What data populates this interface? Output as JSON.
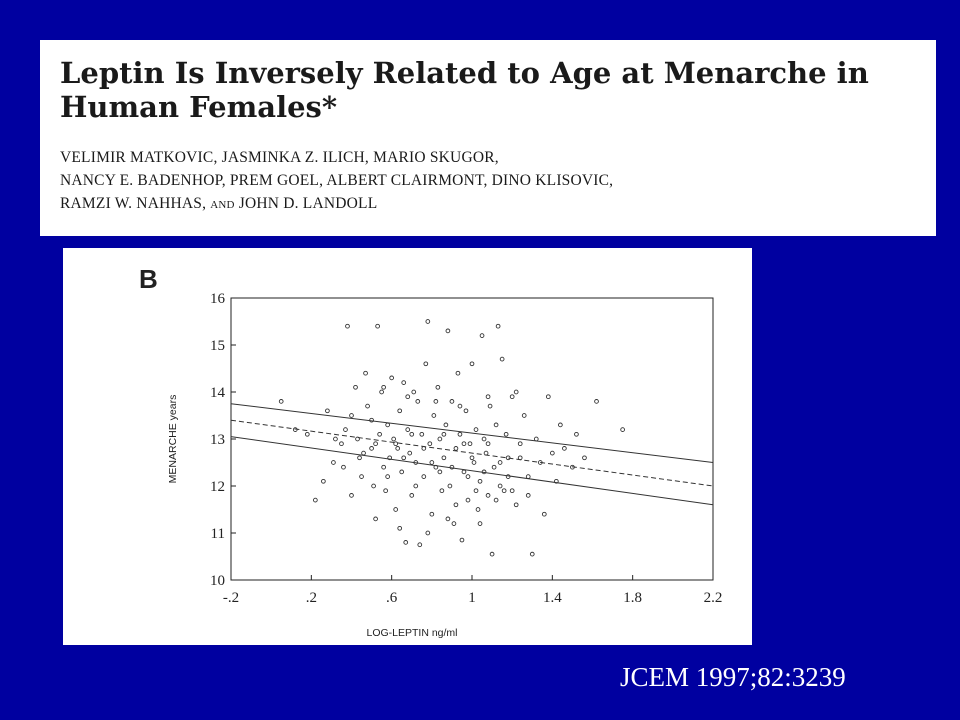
{
  "paper": {
    "title": "Leptin Is Inversely Related to Age at Menarche in Human Females*",
    "authors_line1": "VELIMIR MATKOVIC, JASMINKA Z. ILICH, MARIO SKUGOR,",
    "authors_line2": "NANCY E. BADENHOP, PREM GOEL, ALBERT CLAIRMONT, DINO KLISOVIC,",
    "authors_line3a": "RAMZI W. NAHHAS,",
    "authors_line3b": "AND",
    "authors_line3c": "JOHN D. LANDOLL"
  },
  "citation": "JCEM 1997;82:3239",
  "chart_data": {
    "type": "scatter",
    "panel_label": "B",
    "xlabel": "LOG-LEPTIN ng/ml",
    "ylabel": "MENARCHE years",
    "xlim": [
      -0.2,
      2.2
    ],
    "ylim": [
      10,
      16
    ],
    "x_ticks": [
      "-.2",
      ".2",
      ".6",
      "1",
      "1.4",
      "1.8",
      "2.2"
    ],
    "y_ticks": [
      "10",
      "11",
      "12",
      "13",
      "14",
      "15",
      "16"
    ],
    "grid": false,
    "regression_line": {
      "x": [
        -0.2,
        2.2
      ],
      "y": [
        13.4,
        12.0
      ]
    },
    "confidence_band": {
      "upper_y": [
        13.75,
        12.5
      ],
      "lower_y": [
        13.05,
        11.6
      ]
    },
    "points": [
      [
        0.05,
        13.8
      ],
      [
        0.12,
        13.2
      ],
      [
        0.18,
        13.1
      ],
      [
        0.22,
        11.7
      ],
      [
        0.26,
        12.1
      ],
      [
        0.28,
        13.6
      ],
      [
        0.31,
        12.5
      ],
      [
        0.35,
        12.9
      ],
      [
        0.37,
        13.2
      ],
      [
        0.38,
        15.4
      ],
      [
        0.4,
        13.5
      ],
      [
        0.42,
        14.1
      ],
      [
        0.43,
        13.0
      ],
      [
        0.45,
        12.2
      ],
      [
        0.46,
        12.7
      ],
      [
        0.48,
        13.7
      ],
      [
        0.5,
        13.4
      ],
      [
        0.51,
        12.0
      ],
      [
        0.52,
        12.9
      ],
      [
        0.53,
        15.4
      ],
      [
        0.54,
        13.1
      ],
      [
        0.55,
        14.0
      ],
      [
        0.56,
        12.4
      ],
      [
        0.57,
        11.9
      ],
      [
        0.58,
        13.3
      ],
      [
        0.59,
        12.6
      ],
      [
        0.6,
        14.3
      ],
      [
        0.61,
        13.0
      ],
      [
        0.62,
        11.5
      ],
      [
        0.63,
        12.8
      ],
      [
        0.64,
        13.6
      ],
      [
        0.65,
        12.3
      ],
      [
        0.66,
        14.2
      ],
      [
        0.67,
        10.8
      ],
      [
        0.68,
        13.2
      ],
      [
        0.69,
        12.7
      ],
      [
        0.7,
        11.8
      ],
      [
        0.71,
        14.0
      ],
      [
        0.72,
        12.5
      ],
      [
        0.73,
        13.8
      ],
      [
        0.74,
        10.75
      ],
      [
        0.75,
        13.1
      ],
      [
        0.76,
        12.2
      ],
      [
        0.77,
        14.6
      ],
      [
        0.78,
        15.5
      ],
      [
        0.79,
        12.9
      ],
      [
        0.8,
        11.4
      ],
      [
        0.81,
        13.5
      ],
      [
        0.82,
        12.4
      ],
      [
        0.83,
        14.1
      ],
      [
        0.84,
        13.0
      ],
      [
        0.85,
        11.9
      ],
      [
        0.86,
        12.6
      ],
      [
        0.87,
        13.3
      ],
      [
        0.88,
        15.3
      ],
      [
        0.89,
        12.0
      ],
      [
        0.9,
        13.8
      ],
      [
        0.91,
        11.2
      ],
      [
        0.92,
        12.8
      ],
      [
        0.93,
        14.4
      ],
      [
        0.94,
        13.1
      ],
      [
        0.95,
        10.85
      ],
      [
        0.96,
        12.3
      ],
      [
        0.97,
        13.6
      ],
      [
        0.98,
        11.7
      ],
      [
        0.99,
        12.9
      ],
      [
        1.0,
        14.6
      ],
      [
        1.01,
        12.5
      ],
      [
        1.02,
        13.2
      ],
      [
        1.03,
        11.5
      ],
      [
        1.04,
        12.1
      ],
      [
        1.05,
        15.2
      ],
      [
        1.06,
        13.0
      ],
      [
        1.07,
        12.7
      ],
      [
        1.08,
        11.8
      ],
      [
        1.09,
        13.7
      ],
      [
        1.1,
        10.55
      ],
      [
        1.11,
        12.4
      ],
      [
        1.12,
        13.3
      ],
      [
        1.13,
        15.4
      ],
      [
        1.14,
        12.0
      ],
      [
        1.15,
        14.7
      ],
      [
        1.16,
        11.9
      ],
      [
        1.17,
        13.1
      ],
      [
        1.18,
        12.6
      ],
      [
        1.2,
        13.9
      ],
      [
        1.22,
        11.6
      ],
      [
        1.24,
        12.9
      ],
      [
        1.26,
        13.5
      ],
      [
        1.28,
        12.2
      ],
      [
        1.3,
        10.55
      ],
      [
        1.32,
        13.0
      ],
      [
        1.34,
        12.5
      ],
      [
        1.36,
        11.4
      ],
      [
        1.38,
        13.9
      ],
      [
        1.4,
        12.7
      ],
      [
        1.42,
        12.1
      ],
      [
        1.44,
        13.3
      ],
      [
        1.46,
        12.8
      ],
      [
        1.5,
        12.4
      ],
      [
        1.52,
        13.1
      ],
      [
        1.56,
        12.6
      ],
      [
        1.62,
        13.8
      ],
      [
        1.75,
        13.2
      ],
      [
        0.44,
        12.6
      ],
      [
        0.5,
        12.8
      ],
      [
        0.58,
        12.2
      ],
      [
        0.62,
        12.9
      ],
      [
        0.66,
        12.6
      ],
      [
        0.7,
        13.1
      ],
      [
        0.72,
        12.0
      ],
      [
        0.76,
        12.8
      ],
      [
        0.8,
        12.5
      ],
      [
        0.84,
        12.3
      ],
      [
        0.86,
        13.1
      ],
      [
        0.9,
        12.4
      ],
      [
        0.92,
        11.6
      ],
      [
        0.96,
        12.9
      ],
      [
        0.98,
        12.2
      ],
      [
        1.0,
        12.6
      ],
      [
        1.02,
        11.9
      ],
      [
        1.06,
        12.3
      ],
      [
        1.08,
        12.9
      ],
      [
        1.12,
        11.7
      ],
      [
        1.14,
        12.5
      ],
      [
        1.18,
        12.2
      ],
      [
        1.2,
        11.9
      ],
      [
        1.24,
        12.6
      ],
      [
        1.28,
        11.8
      ],
      [
        0.52,
        11.3
      ],
      [
        0.64,
        11.1
      ],
      [
        0.78,
        11.0
      ],
      [
        0.88,
        11.3
      ],
      [
        1.04,
        11.2
      ],
      [
        0.47,
        14.4
      ],
      [
        0.56,
        14.1
      ],
      [
        0.68,
        13.9
      ],
      [
        0.82,
        13.8
      ],
      [
        0.94,
        13.7
      ],
      [
        1.08,
        13.9
      ],
      [
        1.22,
        14.0
      ],
      [
        0.36,
        12.4
      ],
      [
        0.32,
        13.0
      ],
      [
        0.4,
        11.8
      ]
    ]
  }
}
